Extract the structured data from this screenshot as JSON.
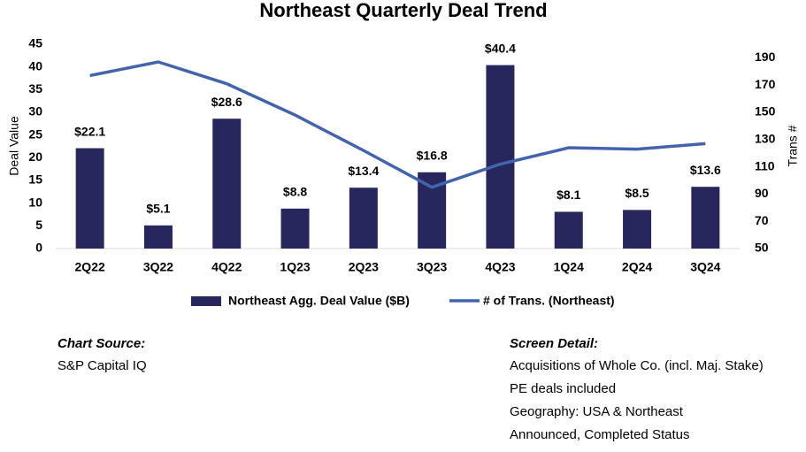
{
  "chart_data": {
    "type": "combo",
    "title": "Northeast Quarterly Deal Trend",
    "categories": [
      "2Q22",
      "3Q22",
      "4Q22",
      "1Q23",
      "2Q23",
      "3Q23",
      "4Q23",
      "1Q24",
      "2Q24",
      "3Q24"
    ],
    "series": [
      {
        "name": "Northeast Agg. Deal Value ($B)",
        "type": "bar",
        "color": "#27275e",
        "values": [
          22.1,
          5.1,
          28.6,
          8.8,
          13.4,
          16.8,
          40.4,
          8.1,
          8.5,
          13.6
        ],
        "value_labels": [
          "$22.1",
          "$5.1",
          "$28.6",
          "$8.8",
          "$13.4",
          "$16.8",
          "$40.4",
          "$8.1",
          "$8.5",
          "$13.6"
        ]
      },
      {
        "name": "# of Trans. (Northeast)",
        "type": "line",
        "axis": "y2",
        "color": "#4463ad",
        "values": [
          177,
          187,
          171,
          148,
          122,
          95,
          112,
          124,
          123,
          127
        ]
      }
    ],
    "y_label": "Deal Value",
    "y2_label": "Trans #",
    "ylim": [
      0,
      45
    ],
    "yticks": [
      0,
      5,
      10,
      15,
      20,
      25,
      30,
      35,
      40,
      45
    ],
    "y2lim": [
      50,
      200
    ],
    "y2ticks": [
      50,
      70,
      90,
      110,
      130,
      150,
      170,
      190
    ]
  },
  "notes": {
    "source_title": "Chart Source:",
    "source": "S&P Capital IQ",
    "detail_title": "Screen Detail:",
    "detail": [
      "Acquisitions of Whole Co. (incl. Maj. Stake)",
      "PE deals included",
      "Geography: USA & Northeast",
      "Announced, Completed Status"
    ]
  }
}
